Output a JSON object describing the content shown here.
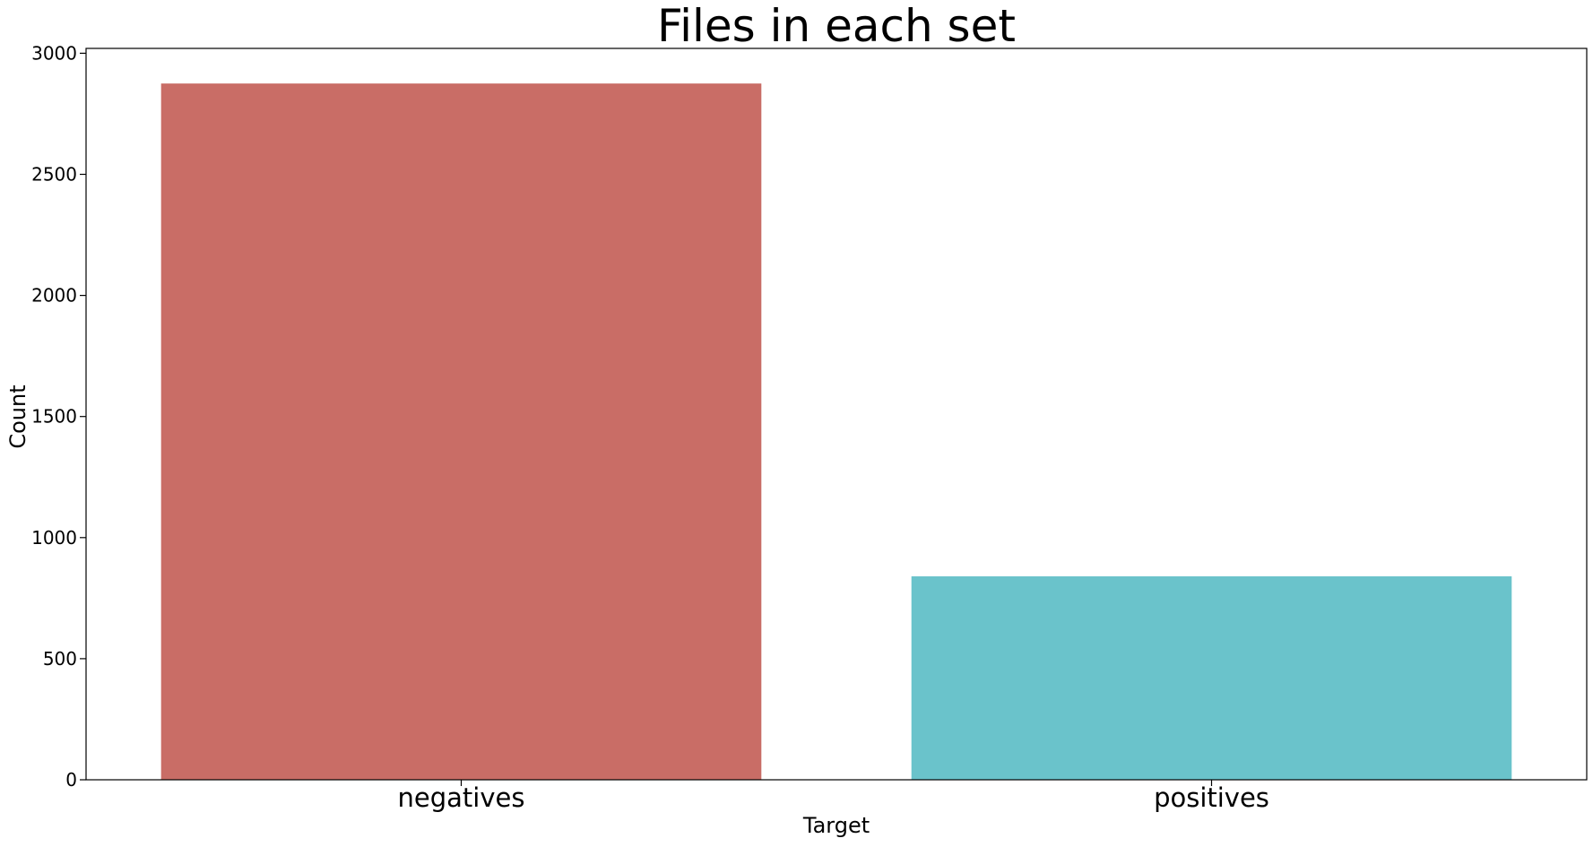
{
  "chart_data": {
    "type": "bar",
    "title": "Files in each set",
    "xlabel": "Target",
    "ylabel": "Count",
    "categories": [
      "negatives",
      "positives"
    ],
    "values": [
      2875,
      840
    ],
    "ylim": [
      0,
      3020
    ],
    "yticks": [
      0,
      500,
      1000,
      1500,
      2000,
      2500,
      3000
    ],
    "ytick_labels": [
      "0",
      "500",
      "1000",
      "1500",
      "2000",
      "2500",
      "3000"
    ],
    "colors": [
      "#c96d66",
      "#6ac3cb"
    ],
    "grid": false,
    "legend": "none"
  }
}
